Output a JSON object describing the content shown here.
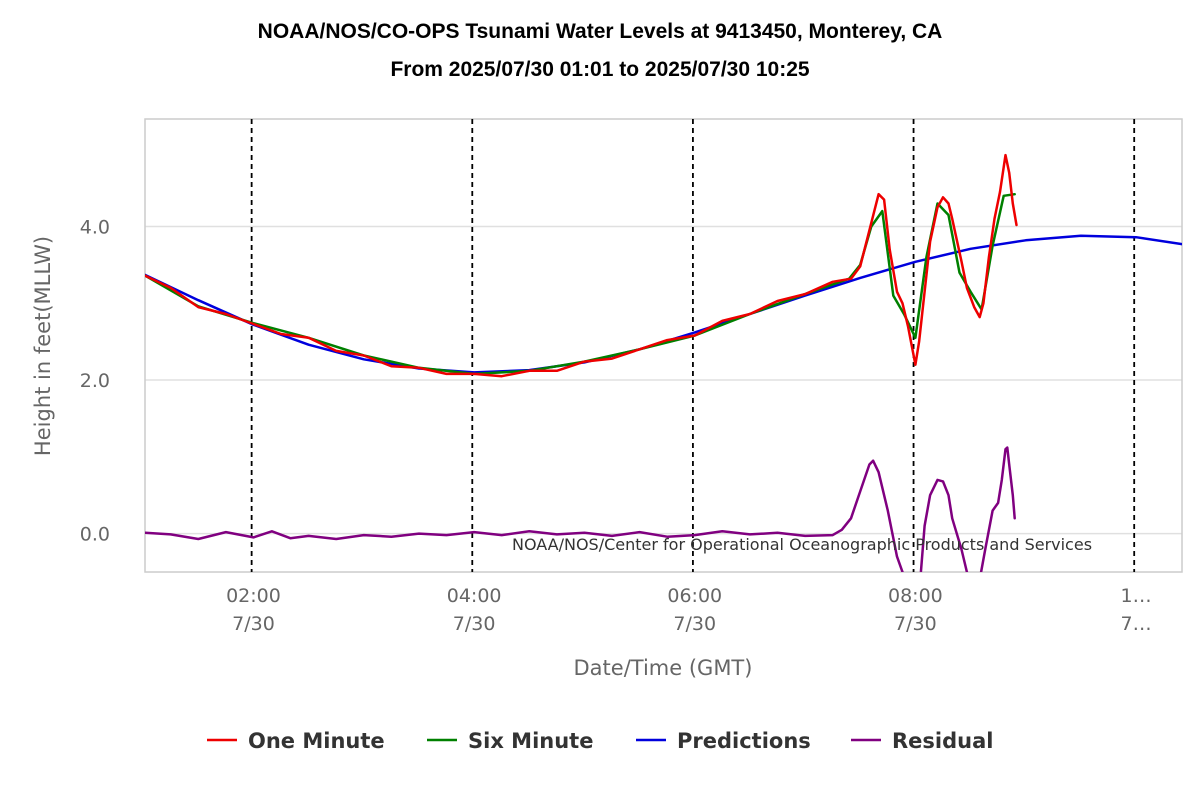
{
  "chart_data": {
    "type": "line",
    "title": "NOAA/NOS/CO-OPS Tsunami Water Levels at 9413450, Monterey, CA",
    "subtitle": "From 2025/07/30 01:01 to 2025/07/30 10:25",
    "xlabel": "Date/Time (GMT)",
    "ylabel": "Height in feet(MLLW)",
    "credit": "NOAA/NOS/Center for Operational Oceanographic Products and Services",
    "xlim": [
      "01:01",
      "10:25"
    ],
    "ylim": [
      -0.5,
      5.4
    ],
    "y_ticks": [
      0.0,
      2.0,
      4.0
    ],
    "y_tick_labels": [
      "0.0",
      "2.0",
      "4.0"
    ],
    "x_ticks": [
      {
        "value": "02:00",
        "line1": "02:00",
        "line2": "7/30"
      },
      {
        "value": "04:00",
        "line1": "04:00",
        "line2": "7/30"
      },
      {
        "value": "06:00",
        "line1": "06:00",
        "line2": "7/30"
      },
      {
        "value": "08:00",
        "line1": "08:00",
        "line2": "7/30"
      },
      {
        "value": "10:00",
        "line1": "1…",
        "line2": "7…"
      }
    ],
    "vertical_dashed_lines": [
      "01:59",
      "03:59",
      "05:59",
      "07:59",
      "09:59"
    ],
    "grid": "horizontal",
    "legend_position": "bottom-center",
    "series": [
      {
        "name": "One Minute",
        "color": "#ee0000",
        "points": [
          [
            "01:01",
            3.36
          ],
          [
            "01:15",
            3.2
          ],
          [
            "01:30",
            2.95
          ],
          [
            "01:45",
            2.86
          ],
          [
            "02:00",
            2.73
          ],
          [
            "02:15",
            2.6
          ],
          [
            "02:30",
            2.55
          ],
          [
            "02:45",
            2.38
          ],
          [
            "03:00",
            2.32
          ],
          [
            "03:15",
            2.18
          ],
          [
            "03:30",
            2.16
          ],
          [
            "03:45",
            2.08
          ],
          [
            "04:00",
            2.08
          ],
          [
            "04:15",
            2.05
          ],
          [
            "04:30",
            2.12
          ],
          [
            "04:45",
            2.12
          ],
          [
            "05:00",
            2.24
          ],
          [
            "05:15",
            2.28
          ],
          [
            "05:30",
            2.4
          ],
          [
            "05:45",
            2.52
          ],
          [
            "06:00",
            2.58
          ],
          [
            "06:15",
            2.77
          ],
          [
            "06:30",
            2.86
          ],
          [
            "06:45",
            3.03
          ],
          [
            "07:00",
            3.12
          ],
          [
            "07:15",
            3.28
          ],
          [
            "07:25",
            3.32
          ],
          [
            "07:30",
            3.48
          ],
          [
            "07:35",
            3.95
          ],
          [
            "07:40",
            4.42
          ],
          [
            "07:43",
            4.35
          ],
          [
            "07:46",
            3.7
          ],
          [
            "07:50",
            3.15
          ],
          [
            "07:53",
            3.0
          ],
          [
            "07:56",
            2.7
          ],
          [
            "07:58",
            2.45
          ],
          [
            "08:00",
            2.2
          ],
          [
            "08:02",
            2.5
          ],
          [
            "08:05",
            3.15
          ],
          [
            "08:08",
            3.8
          ],
          [
            "08:12",
            4.25
          ],
          [
            "08:15",
            4.38
          ],
          [
            "08:18",
            4.3
          ],
          [
            "08:20",
            4.1
          ],
          [
            "08:25",
            3.55
          ],
          [
            "08:28",
            3.2
          ],
          [
            "08:32",
            2.95
          ],
          [
            "08:35",
            2.82
          ],
          [
            "08:37",
            3.0
          ],
          [
            "08:40",
            3.6
          ],
          [
            "08:43",
            4.1
          ],
          [
            "08:46",
            4.45
          ],
          [
            "08:49",
            4.93
          ],
          [
            "08:51",
            4.7
          ],
          [
            "08:53",
            4.3
          ],
          [
            "08:55",
            4.02
          ]
        ]
      },
      {
        "name": "Six Minute",
        "color": "#008000",
        "points": [
          [
            "01:01",
            3.36
          ],
          [
            "01:30",
            2.96
          ],
          [
            "02:00",
            2.74
          ],
          [
            "02:30",
            2.55
          ],
          [
            "03:00",
            2.32
          ],
          [
            "03:30",
            2.16
          ],
          [
            "04:00",
            2.08
          ],
          [
            "04:30",
            2.12
          ],
          [
            "05:00",
            2.24
          ],
          [
            "05:30",
            2.4
          ],
          [
            "06:00",
            2.58
          ],
          [
            "06:30",
            2.86
          ],
          [
            "07:00",
            3.12
          ],
          [
            "07:24",
            3.32
          ],
          [
            "07:30",
            3.5
          ],
          [
            "07:36",
            4.0
          ],
          [
            "07:42",
            4.2
          ],
          [
            "07:48",
            3.1
          ],
          [
            "07:54",
            2.85
          ],
          [
            "08:00",
            2.55
          ],
          [
            "08:06",
            3.6
          ],
          [
            "08:12",
            4.3
          ],
          [
            "08:18",
            4.15
          ],
          [
            "08:24",
            3.4
          ],
          [
            "08:30",
            3.15
          ],
          [
            "08:36",
            2.92
          ],
          [
            "08:42",
            3.75
          ],
          [
            "08:48",
            4.4
          ],
          [
            "08:54",
            4.42
          ]
        ]
      },
      {
        "name": "Predictions",
        "color": "#0000dd",
        "points": [
          [
            "01:01",
            3.37
          ],
          [
            "01:30",
            3.04
          ],
          [
            "02:00",
            2.72
          ],
          [
            "02:30",
            2.46
          ],
          [
            "03:00",
            2.27
          ],
          [
            "03:30",
            2.15
          ],
          [
            "04:00",
            2.1
          ],
          [
            "04:30",
            2.13
          ],
          [
            "05:00",
            2.23
          ],
          [
            "05:30",
            2.4
          ],
          [
            "06:00",
            2.62
          ],
          [
            "06:30",
            2.86
          ],
          [
            "07:00",
            3.1
          ],
          [
            "07:30",
            3.33
          ],
          [
            "08:00",
            3.54
          ],
          [
            "08:30",
            3.71
          ],
          [
            "09:00",
            3.82
          ],
          [
            "09:30",
            3.88
          ],
          [
            "10:00",
            3.86
          ],
          [
            "10:25",
            3.77
          ]
        ]
      },
      {
        "name": "Residual",
        "color": "#800080",
        "points": [
          [
            "01:01",
            0.01
          ],
          [
            "01:15",
            -0.01
          ],
          [
            "01:30",
            -0.07
          ],
          [
            "01:45",
            0.02
          ],
          [
            "02:00",
            -0.05
          ],
          [
            "02:10",
            0.03
          ],
          [
            "02:20",
            -0.06
          ],
          [
            "02:30",
            -0.03
          ],
          [
            "02:45",
            -0.07
          ],
          [
            "03:00",
            -0.02
          ],
          [
            "03:15",
            -0.04
          ],
          [
            "03:30",
            0.0
          ],
          [
            "03:45",
            -0.02
          ],
          [
            "04:00",
            0.02
          ],
          [
            "04:15",
            -0.02
          ],
          [
            "04:30",
            0.03
          ],
          [
            "04:45",
            -0.01
          ],
          [
            "05:00",
            0.01
          ],
          [
            "05:15",
            -0.03
          ],
          [
            "05:30",
            0.02
          ],
          [
            "05:45",
            -0.04
          ],
          [
            "06:00",
            -0.02
          ],
          [
            "06:15",
            0.03
          ],
          [
            "06:30",
            -0.01
          ],
          [
            "06:45",
            0.01
          ],
          [
            "07:00",
            -0.03
          ],
          [
            "07:15",
            -0.02
          ],
          [
            "07:20",
            0.05
          ],
          [
            "07:25",
            0.2
          ],
          [
            "07:30",
            0.55
          ],
          [
            "07:35",
            0.9
          ],
          [
            "07:37",
            0.95
          ],
          [
            "07:40",
            0.8
          ],
          [
            "07:45",
            0.3
          ],
          [
            "07:50",
            -0.3
          ],
          [
            "07:53",
            -0.5
          ],
          [
            "07:56",
            -0.8
          ],
          [
            "08:00",
            -1.1
          ],
          [
            "08:03",
            -0.5
          ],
          [
            "08:05",
            0.1
          ],
          [
            "08:08",
            0.5
          ],
          [
            "08:12",
            0.7
          ],
          [
            "08:15",
            0.68
          ],
          [
            "08:18",
            0.5
          ],
          [
            "08:20",
            0.2
          ],
          [
            "08:25",
            -0.2
          ],
          [
            "08:28",
            -0.5
          ],
          [
            "08:32",
            -0.85
          ],
          [
            "08:35",
            -0.6
          ],
          [
            "08:38",
            -0.2
          ],
          [
            "08:42",
            0.3
          ],
          [
            "08:45",
            0.4
          ],
          [
            "08:47",
            0.7
          ],
          [
            "08:49",
            1.1
          ],
          [
            "08:50",
            1.12
          ],
          [
            "08:51",
            0.9
          ],
          [
            "08:53",
            0.5
          ],
          [
            "08:54",
            0.2
          ]
        ]
      }
    ]
  }
}
